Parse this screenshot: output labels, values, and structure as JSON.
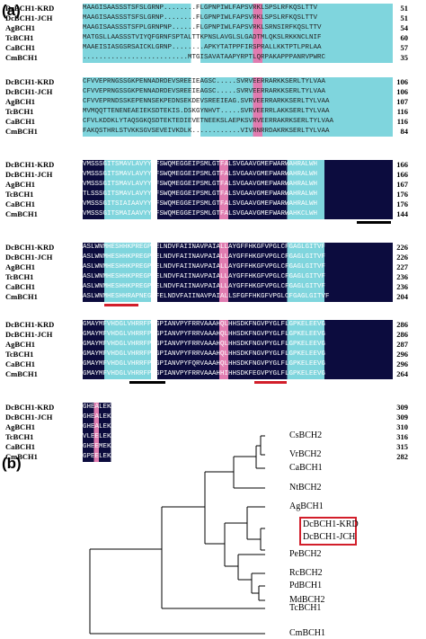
{
  "panels": {
    "a_label": "(a)",
    "b_label": "(b)"
  },
  "alignment": {
    "blocks": [
      {
        "rows": [
          {
            "name": "DcBCH1-KRD",
            "seq": "MAAGISAASSSTSFSLGRNP........FLGPNPIWLFAPSVRKLSPSLRFKQSLTTV",
            "num": "51"
          },
          {
            "name": "DcBCH1-JCH",
            "seq": "MAAGISAASSSTSFSLGRNP........FLGPNPIWLFAPSVRKLSPSLRFKQSLTTV",
            "num": "51"
          },
          {
            "name": "AgBCH1",
            "seq": "MAAGISAASSSTSFPLGRNPNP......FLGPNPIWLFAPSVRKLSRNSIRFKQSLTTV",
            "num": "54"
          },
          {
            "name": "TcBCH1",
            "seq": "MATGSLLAASSSTVIYQFGRNFSPTALTTKPNSLAVGLSLGADTMLQKSLRKKNCLNIF",
            "num": "60"
          },
          {
            "name": "CaBCH1",
            "seq": "MAAEISIASGSRSAICKLGRNP........APKYTATPPFIRSPRALLKKTPTLPRLAA",
            "num": "57"
          },
          {
            "name": "CmBCH1",
            "seq": "..........................MTGISAVATAAPYRPTLQRPAKAPPPANRVPWRC",
            "num": "35"
          }
        ]
      },
      {
        "rows": [
          {
            "name": "DcBCH1-KRD",
            "seq": "CFVVEPRNGSSGKPENNADRDEVSREEIEAGSC.....SVRVEERRARKKSERLTYLVAA",
            "num": "106"
          },
          {
            "name": "DcBCH1-JCH",
            "seq": "CFVVEPRNGSSGKPENNADRDEVSREEIEAGSC.....SVRVEERRARKKSERLTYLVAA",
            "num": "106"
          },
          {
            "name": "AgBCH1",
            "seq": "CFVVEPRNDSSKEPENNSEKPEDNSEKDEVSREEIEAG.SVRVEERRARKKSERLTYLVAA",
            "num": "107"
          },
          {
            "name": "TcBCH1",
            "seq": "MVMQQTTENENEAEIEKSDTEKIS.DSKGYNHVT.....SVRVEERRLAKKSERLTYLVAA",
            "num": "116"
          },
          {
            "name": "CaBCH1",
            "seq": "CFVLKDDKLYTAQSGKQSDTEKTEDIEVETNEEKSLAEPKSVRVEERRAKRKSERLTYLVAA",
            "num": "116"
          },
          {
            "name": "CmBCH1",
            "seq": "FAKQSTHRLSTVKKSGVSEVEIVKDLK............VIVRNRRDAKRKSERLTYLVAA",
            "num": "84"
          }
        ]
      },
      {
        "rows": [
          {
            "name": "DcBCH1-KRD",
            "seq": "VMSSSGITSMAVLAVYYRFSWQMEGGEIPSMLGTFALSVGAAVGMEFWARWAHRALWH",
            "num": "166"
          },
          {
            "name": "DcBCH1-JCH",
            "seq": "VMSSSGITSMAVLAVYYRFSWQMEGGEIPSMLGTFALSVGAAVGMEFWARWAHRALWH",
            "num": "166"
          },
          {
            "name": "AgBCH1",
            "seq": "VMSSSGITSMAVLAVYYRFSWQMEGGEIPSMLGTFALSVGAAVGMEFWARWAHRALWH",
            "num": "167"
          },
          {
            "name": "TcBCH1",
            "seq": "TLSSSGITSMAVLAVYYRFSWQMEGGEIPSMLGTFALSVGAAVGMEFWARWAHRALWH",
            "num": "176"
          },
          {
            "name": "CaBCH1",
            "seq": "VMSSSGITSIAIAAVYYRFSWQMEGGEIPSMLGTFALSVGAAVGMEFWARWAHRALWH",
            "num": "176"
          },
          {
            "name": "CmBCH1",
            "seq": "VMSSSGITSMAIAAVYYRFSWQMEGGEIPSMLGTFALSVGAAVGMEFWARWAHKCLWH",
            "num": "144"
          }
        ]
      },
      {
        "rows": [
          {
            "name": "DcBCH1-KRD",
            "seq": "ASLWNMHESHHKPREGPFELNDVFAIINAVPAIALLAYGFFHKGFVPGLCFGAGLGITVF",
            "num": "226"
          },
          {
            "name": "DcBCH1-JCH",
            "seq": "ASLWNMHESHHKPREGPFELNDVFAIINAVPAIALLAYGFFHKGFVPGLCFGAGLGITVF",
            "num": "226"
          },
          {
            "name": "AgBCH1",
            "seq": "ASLWNMHESHHKPREGPFELNDVFAIINAVPAIALLAYGFFHKGFVPGLCFGAGLGITVF",
            "num": "227"
          },
          {
            "name": "TcBCH1",
            "seq": "ASLWNMHESHHKPREGPFELNDVFAIINAVPAIALLAYGFFHKGFVPGLCFGAGLGITVF",
            "num": "236"
          },
          {
            "name": "CaBCH1",
            "seq": "ASLWNMHESHHKPREGPFELNDVFAIINAVPAIALLAYGFFHKGFVPGLCFGAGLGITVF",
            "num": "236"
          },
          {
            "name": "CmBCH1",
            "seq": "ASLWNMHESHHRAPNEGPFELNDVFAIINAVPAIALLSFGFFHKGFVPGLCFGAGLGITVF",
            "num": "204"
          }
        ]
      },
      {
        "rows": [
          {
            "name": "DcBCH1-KRD",
            "seq": "GMAYMFVHDGLVHRRFPVGPIANVPYFRRVAAAHQLHHSDKFNGVPYGLFLGPKELEEVG",
            "num": "286"
          },
          {
            "name": "DcBCH1-JCH",
            "seq": "GMAYMFVHDGLVHRRFPVGPIANVPYFRRVAAAHQLHHSDKFNGVPYGLFLGPKELEEVG",
            "num": "286"
          },
          {
            "name": "AgBCH1",
            "seq": "GMAYMFVHDGLVHRRFPVGPIANVPYFRRVAAAHQLHHSDKFNGVPYGLFLGPKELEEVG",
            "num": "287"
          },
          {
            "name": "TcBCH1",
            "seq": "GMAYMFVHDGLVHRRFPVGPIANVPYFRRVAAAHQLHHSDKFNGVPYGLFLGPKELEEVG",
            "num": "296"
          },
          {
            "name": "CaBCH1",
            "seq": "GMAYMFVHDGLVHRRFPVGPIANVPYFQRVAAAHQLHHSDKFNGVPYGLFLGPKELEEVG",
            "num": "296"
          },
          {
            "name": "CmBCH1",
            "seq": "GMAYMFVHDGLVHRRFPVGPIANVPYFRRVAAAHHIHHSDKFEGVPYGLFLGPKELEEVG",
            "num": "264"
          }
        ]
      },
      {
        "rows": [
          {
            "name": "DcBCH1-KRD",
            "seq": "GHEALEKEINRRIKSSASRARS",
            "num": "309"
          },
          {
            "name": "DcBCH1-JCH",
            "seq": "GHEALEKEINRRIKSSASRARS",
            "num": "309"
          },
          {
            "name": "AgBCH1",
            "seq": "GHEALEKEINRRIKSSASRAGL",
            "num": "310"
          },
          {
            "name": "TcBCH1",
            "seq": "VLEELEKEINRRIKSKRL...",
            "num": "316"
          },
          {
            "name": "CaBCH1",
            "seq": "GHEEMEKEINRRIKSKRL...",
            "num": "315"
          },
          {
            "name": "CmBCH1",
            "seq": "GPEELEKEINKRIKSRVYRN...",
            "num": "282"
          }
        ]
      }
    ]
  },
  "tree": {
    "leaves": [
      "CsBCH2",
      "VrBCH2",
      "CaBCH1",
      "NtBCH2",
      "AgBCH1",
      "DcBCH1-KRD",
      "DcBCH1-JCH",
      "PeBCH2",
      "RcBCH2",
      "PdBCH1",
      "MdBCH2",
      "TcBCH1",
      "CmBCH1"
    ],
    "highlighted": [
      "DcBCH1-KRD",
      "DcBCH1-JCH"
    ],
    "highlight_color": "#d21e2a"
  },
  "colors": {
    "identical": "#0c0c3e",
    "similar_high": "#e07cb0",
    "similar_low": "#7fd5dd",
    "underline_black": "#000000",
    "underline_red": "#d21e2a"
  }
}
